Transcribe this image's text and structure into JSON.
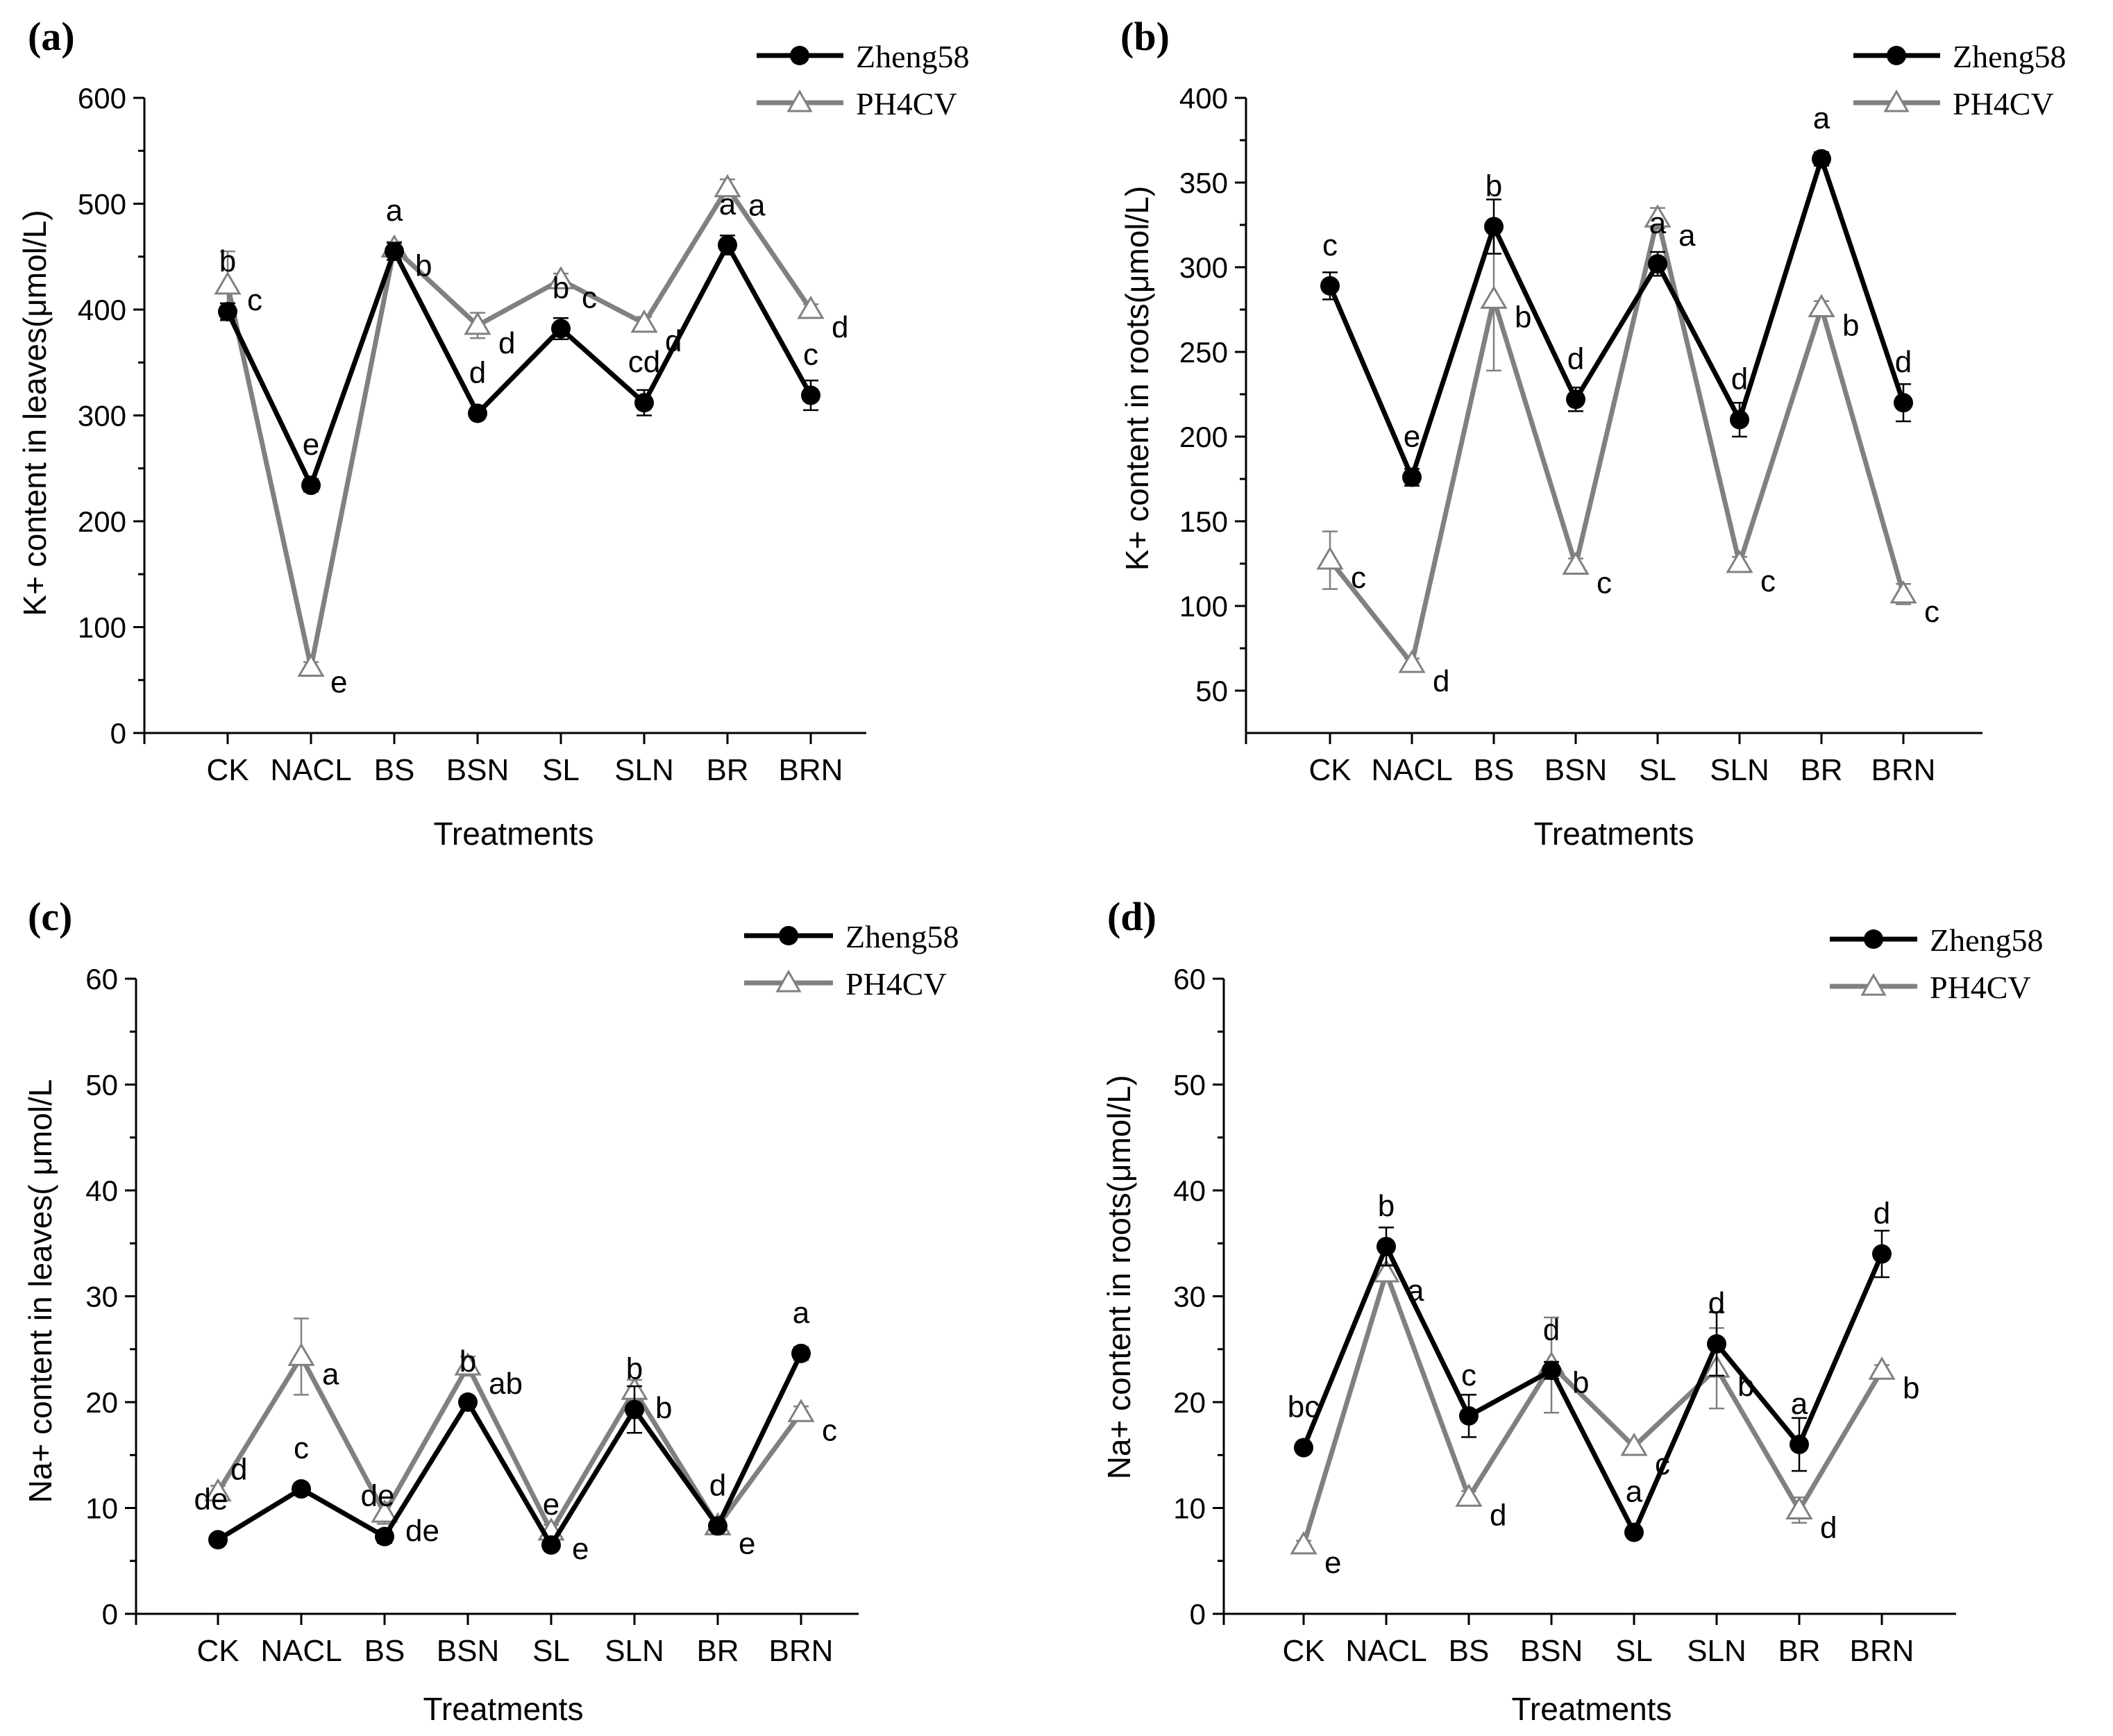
{
  "figure": {
    "panel_letters": [
      "(a)",
      "(b)",
      "(c)",
      "(d)"
    ],
    "series_colors": {
      "Zheng58": "#000000",
      "PH4CV": "#808080"
    }
  },
  "chart_data": [
    {
      "type": "line",
      "panel": "(a)",
      "title": "",
      "xlabel": "Treatments",
      "ylabel": "K+ content in leaves(μmol/L)",
      "categories": [
        "CK",
        "NACL",
        "BS",
        "BSN",
        "SL",
        "SLN",
        "BR",
        "BRN"
      ],
      "ylim": [
        0,
        600
      ],
      "yticks": [
        0,
        100,
        200,
        300,
        400,
        500,
        600
      ],
      "grid": false,
      "legend": "top-right",
      "series": [
        {
          "name": "Zheng58",
          "marker": "filled-circle",
          "values": [
            398,
            234,
            455,
            302,
            382,
            312,
            461,
            319
          ],
          "errors": [
            8,
            6,
            8,
            5,
            10,
            12,
            9,
            14
          ],
          "labels": [
            "b",
            "e",
            "a",
            "d",
            "b",
            "cd",
            "a",
            "c"
          ]
        },
        {
          "name": "PH4CV",
          "marker": "open-triangle",
          "values": [
            423,
            62,
            458,
            385,
            428,
            387,
            515,
            400
          ],
          "errors": [
            32,
            5,
            6,
            12,
            6,
            6,
            8,
            5
          ],
          "labels": [
            "c",
            "e",
            "b",
            "d",
            "c",
            "d",
            "a",
            "d"
          ]
        }
      ]
    },
    {
      "type": "line",
      "panel": "(b)",
      "title": "",
      "xlabel": "Treatments",
      "ylabel": "K+ content in roots(μmol/L)",
      "categories": [
        "CK",
        "NACL",
        "BS",
        "BSN",
        "SL",
        "SLN",
        "BR",
        "BRN"
      ],
      "ylim": [
        25,
        400
      ],
      "yticks": [
        50,
        100,
        150,
        200,
        250,
        300,
        350,
        400
      ],
      "grid": false,
      "legend": "top-right",
      "series": [
        {
          "name": "Zheng58",
          "marker": "filled-circle",
          "values": [
            289,
            176,
            324,
            222,
            302,
            210,
            364,
            220
          ],
          "errors": [
            8,
            5,
            16,
            7,
            7,
            10,
            4,
            11
          ],
          "labels": [
            "c",
            "e",
            "b",
            "d",
            "a",
            "d",
            "a",
            "d"
          ]
        },
        {
          "name": "PH4CV",
          "marker": "open-triangle",
          "values": [
            127,
            66,
            281,
            124,
            329,
            125,
            276,
            107
          ],
          "errors": [
            17,
            3,
            42,
            4,
            6,
            4,
            4,
            6
          ],
          "labels": [
            "c",
            "d",
            "b",
            "c",
            "a",
            "c",
            "b",
            "c"
          ]
        }
      ]
    },
    {
      "type": "line",
      "panel": "(c)",
      "title": "",
      "xlabel": "Treatments",
      "ylabel": "Na+ content in leaves( μmol/L",
      "categories": [
        "CK",
        "NACL",
        "BS",
        "BSN",
        "SL",
        "SLN",
        "BR",
        "BRN"
      ],
      "ylim": [
        0,
        60
      ],
      "yticks": [
        0,
        10,
        20,
        30,
        40,
        50,
        60
      ],
      "grid": false,
      "legend": "top-right",
      "series": [
        {
          "name": "Zheng58",
          "marker": "filled-circle",
          "values": [
            7.0,
            11.8,
            7.3,
            20.0,
            6.5,
            19.3,
            8.3,
            24.6
          ],
          "errors": [
            0.3,
            0.5,
            0.6,
            0.5,
            0.4,
            2.2,
            0.4,
            0.6
          ],
          "labels": [
            "de",
            "c",
            "de",
            "b",
            "e",
            "b",
            "d",
            "a"
          ]
        },
        {
          "name": "PH4CV",
          "marker": "open-triangle",
          "values": [
            11.5,
            24.3,
            9.5,
            23.4,
            7.8,
            21.1,
            8.3,
            19.0
          ],
          "errors": [
            0.6,
            3.6,
            1.0,
            0.9,
            0.6,
            1.0,
            0.4,
            0.6
          ],
          "labels": [
            "d",
            "a",
            "de",
            "ab",
            "e",
            "b",
            "e",
            "c"
          ]
        }
      ]
    },
    {
      "type": "line",
      "panel": "(d)",
      "title": "",
      "xlabel": "Treatments",
      "ylabel": "Na+ content in roots(μmol/L)",
      "categories": [
        "CK",
        "NACL",
        "BS",
        "BSN",
        "SL",
        "SLN",
        "BR",
        "BRN"
      ],
      "ylim": [
        0,
        60
      ],
      "yticks": [
        0,
        10,
        20,
        30,
        40,
        50,
        60
      ],
      "grid": false,
      "legend": "top-right",
      "series": [
        {
          "name": "Zheng58",
          "marker": "filled-circle",
          "values": [
            15.7,
            34.7,
            18.7,
            23.0,
            7.7,
            25.5,
            16.0,
            34.0
          ],
          "errors": [
            0.5,
            1.8,
            2.0,
            0.8,
            0.5,
            3.0,
            2.5,
            2.2
          ],
          "labels": [
            "bc",
            "b",
            "c",
            "d",
            "a",
            "d",
            "a",
            "d"
          ]
        },
        {
          "name": "PH4CV",
          "marker": "open-triangle",
          "values": [
            6.5,
            32.2,
            11.0,
            23.5,
            15.8,
            23.2,
            9.8,
            23.0
          ],
          "errors": [
            0.4,
            0.8,
            0.6,
            4.5,
            0.6,
            3.8,
            1.2,
            0.5
          ],
          "labels": [
            "e",
            "a",
            "d",
            "b",
            "c",
            "b",
            "d",
            "b"
          ]
        }
      ]
    }
  ]
}
